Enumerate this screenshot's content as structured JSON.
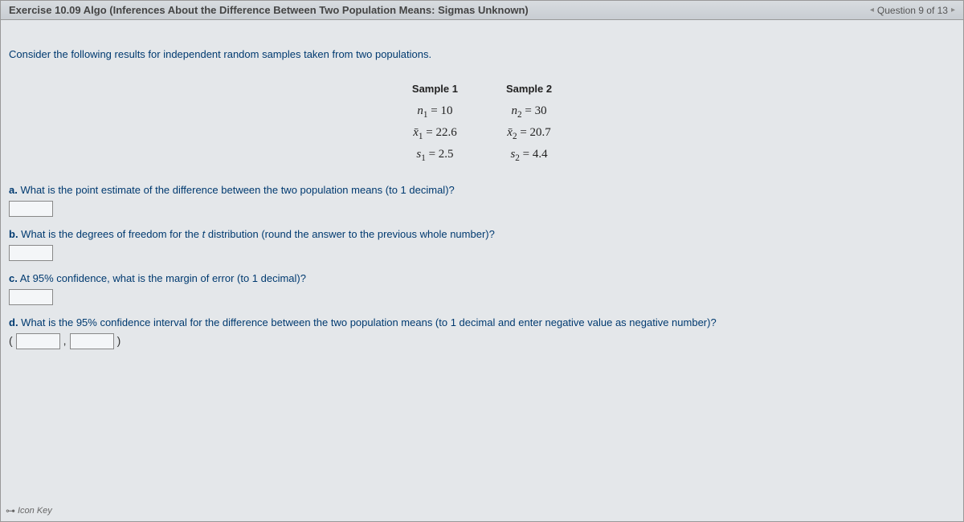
{
  "header": {
    "title": "Exercise 10.09 Algo (Inferences About the Difference Between Two Population Means: Sigmas Unknown)",
    "nav_prev_icon": "◂",
    "nav_label": "Question 9 of 13",
    "nav_next_icon": "▸"
  },
  "content": {
    "intro": "Consider the following results for independent random samples taken from two populations.",
    "samples": {
      "header1": "Sample 1",
      "header2": "Sample 2",
      "n1_label": "n",
      "n1_sub": "1",
      "n1_val": " = 10",
      "n2_label": "n",
      "n2_sub": "2",
      "n2_val": " = 30",
      "x1_label": "x̄",
      "x1_sub": "1",
      "x1_val": " = 22.6",
      "x2_label": "x̄",
      "x2_sub": "2",
      "x2_val": " = 20.7",
      "s1_label": "s",
      "s1_sub": "1",
      "s1_val": " = 2.5",
      "s2_label": "s",
      "s2_sub": "2",
      "s2_val": " = 4.4"
    },
    "questions": {
      "a": {
        "label": "a.",
        "text": " What is the point estimate of the difference between the two population means (to 1 decimal)?"
      },
      "b": {
        "label": "b.",
        "text_before": " What is the degrees of freedom for the ",
        "ital": "t",
        "text_after": " distribution (round the answer to the previous whole number)?"
      },
      "c": {
        "label": "c.",
        "text_before": " At ",
        "percent": "95%",
        "text_after": " confidence, what is the margin of error (to 1 decimal)?"
      },
      "d": {
        "label": "d.",
        "text_before": " What is the ",
        "percent": "95%",
        "text_after": " confidence interval for the difference between the two population means (to 1 decimal and enter negative value as negative number)?",
        "paren_open": "(",
        "comma": ",",
        "paren_close": ")"
      }
    }
  },
  "footer": {
    "icon": "⊶",
    "label": "Icon Key"
  },
  "styling": {
    "background_gradient_top": "#e8eaec",
    "background_gradient_bottom": "#dfe2e5",
    "header_gradient_top": "#d8dce0",
    "header_gradient_bottom": "#c8cdd2",
    "text_color_primary": "#003a70",
    "border_color": "#999",
    "input_border": "#888",
    "input_bg": "#f4f6f8"
  }
}
